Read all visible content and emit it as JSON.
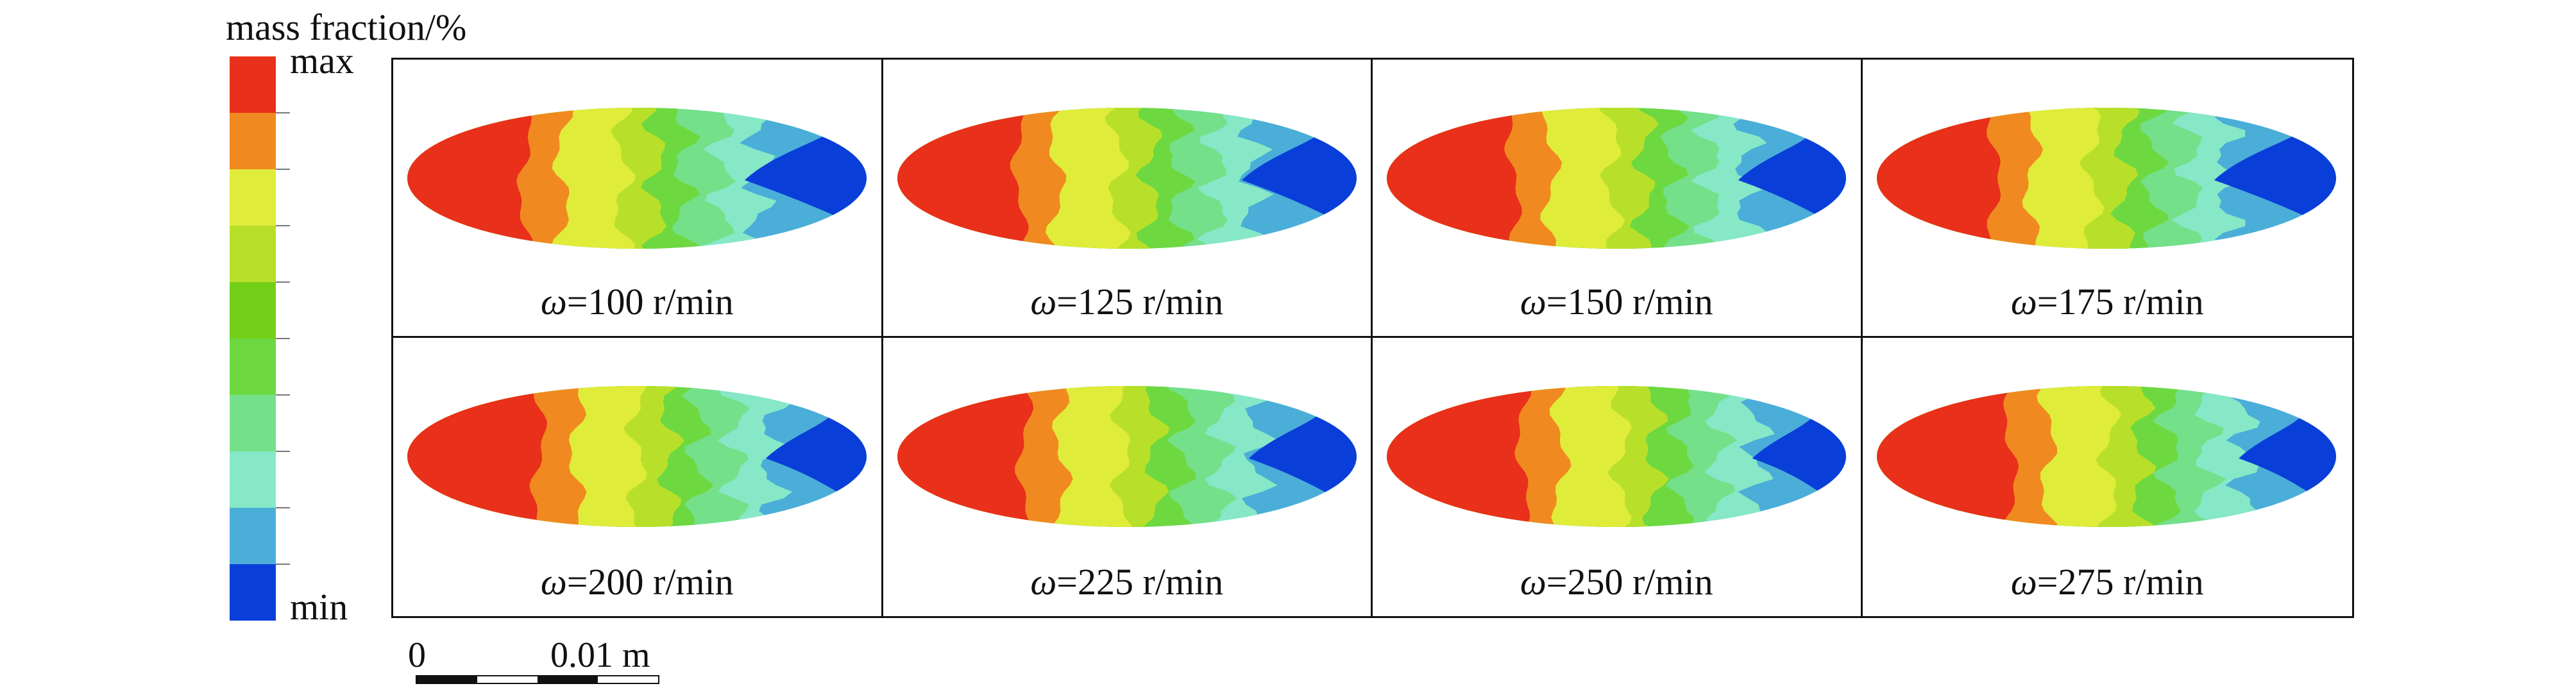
{
  "legend": {
    "title": "mass fraction/%",
    "max_label": "max",
    "min_label": "min",
    "colors": [
      "#e8301a",
      "#f08a20",
      "#e0ec3a",
      "#b8e02a",
      "#74cf18",
      "#6ed840",
      "#74e08a",
      "#86e8c6",
      "#4aaed8",
      "#0a3ed8"
    ]
  },
  "panels": [
    {
      "symbol": "ω",
      "text": "=100 r/min",
      "variant": 0
    },
    {
      "symbol": "ω",
      "text": "=125 r/min",
      "variant": 1
    },
    {
      "symbol": "ω",
      "text": "=150 r/min",
      "variant": 2
    },
    {
      "symbol": "ω",
      "text": "=175 r/min",
      "variant": 3
    },
    {
      "symbol": "ω",
      "text": "=200 r/min",
      "variant": 4
    },
    {
      "symbol": "ω",
      "text": "=225 r/min",
      "variant": 5
    },
    {
      "symbol": "ω",
      "text": "=250 r/min",
      "variant": 6
    },
    {
      "symbol": "ω",
      "text": "=275 r/min",
      "variant": 7
    }
  ],
  "scalebar": {
    "zero_label": "0",
    "value_label": "0.01 m"
  }
}
